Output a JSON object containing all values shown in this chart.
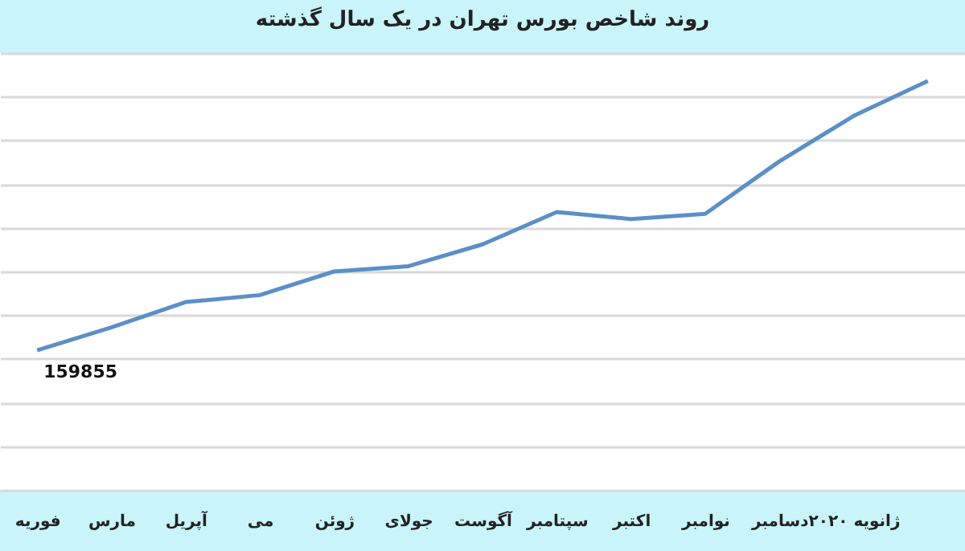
{
  "chart_data": {
    "type": "line",
    "title": "روند شاخص بورس تهران در یک سال گذشته",
    "categories": [
      "فوریه",
      "مارس",
      "آپریل",
      "می",
      "ژوئن",
      "جولای",
      "آگوست",
      "سپتامبر",
      "اکتبر",
      "نوامبر",
      "دسامبر",
      "ژانویه ۲۰۲۰",
      null
    ],
    "series": [
      {
        "color": "#5b8fc7",
        "values": [
          159855,
          186000,
          215000,
          223000,
          250000,
          256000,
          281000,
          318000,
          310000,
          316000,
          376000,
          428000,
          468000
        ],
        "value_labels": [
          "159855",
          null,
          null,
          null,
          null,
          null,
          null,
          null,
          null,
          null,
          null,
          null,
          null
        ]
      }
    ],
    "ylim": [
      0,
      500000
    ],
    "yticks": [
      {
        "value": 0,
        "label": null
      },
      {
        "value": 50000,
        "label": null
      },
      {
        "value": 100000,
        "label": null
      },
      {
        "value": 150000,
        "label": null
      },
      {
        "value": 200000,
        "label": null
      },
      {
        "value": 250000,
        "label": null
      },
      {
        "value": 300000,
        "label": null
      },
      {
        "value": 350000,
        "label": null
      },
      {
        "value": 400000,
        "label": null
      },
      {
        "value": 450000,
        "label": null
      },
      {
        "value": 500000,
        "label": null
      }
    ],
    "grid": "y",
    "tick_labels": "x",
    "marker": "none",
    "line_style": "solid"
  }
}
